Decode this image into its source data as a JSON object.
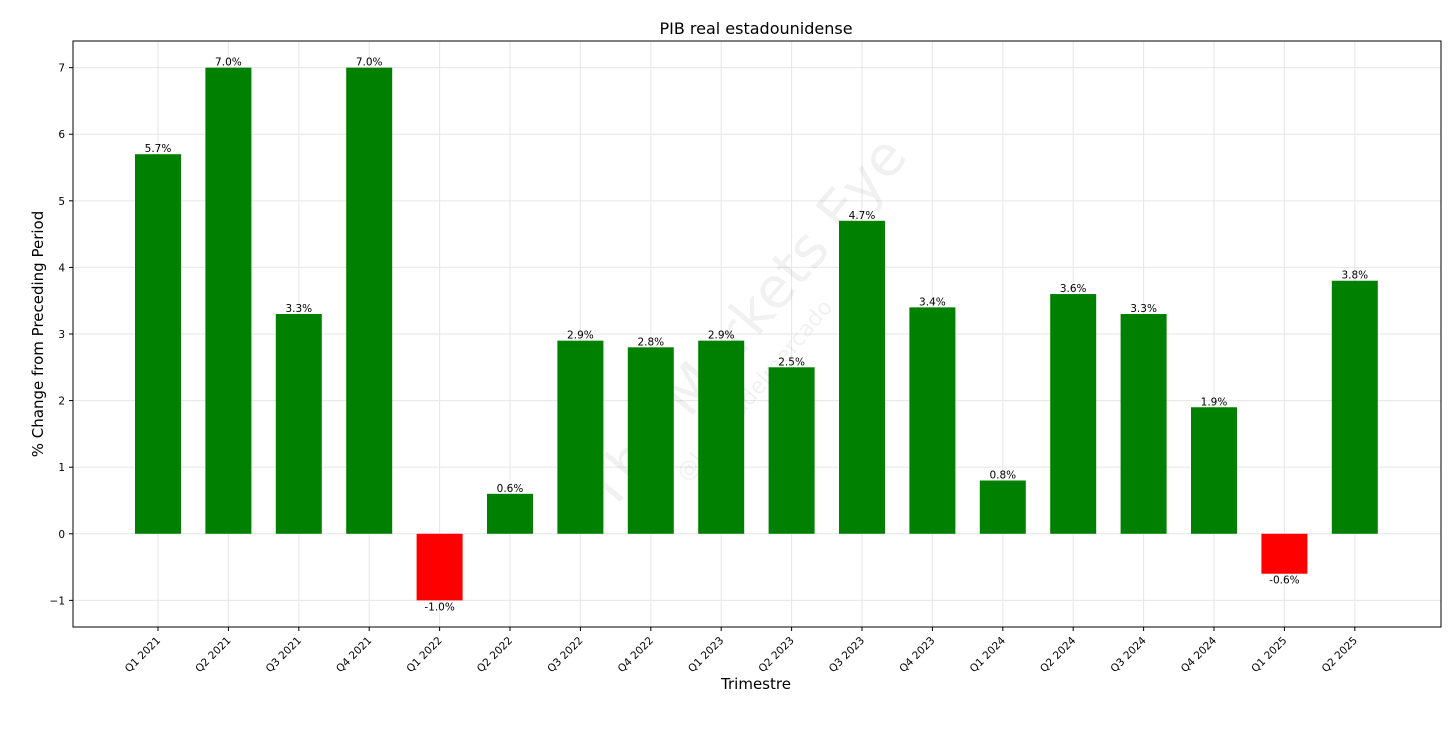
{
  "chart_data": {
    "type": "bar",
    "title": "PIB real estadounidense",
    "xlabel": "Trimestre",
    "ylabel": "% Change from Preceding Period",
    "categories": [
      "Q1 2021",
      "Q2 2021",
      "Q3 2021",
      "Q4 2021",
      "Q1 2022",
      "Q2 2022",
      "Q3 2022",
      "Q4 2022",
      "Q1 2023",
      "Q2 2023",
      "Q3 2023",
      "Q4 2023",
      "Q1 2024",
      "Q2 2024",
      "Q3 2024",
      "Q4 2024",
      "Q1 2025",
      "Q2 2025"
    ],
    "values": [
      5.7,
      7.0,
      3.3,
      7.0,
      -1.0,
      0.6,
      2.9,
      2.8,
      2.9,
      2.5,
      4.7,
      3.4,
      0.8,
      3.6,
      3.3,
      1.9,
      -0.6,
      3.8
    ],
    "data_labels": [
      "5.7%",
      "7.0%",
      "3.3%",
      "7.0%",
      "-1.0%",
      "0.6%",
      "2.9%",
      "2.8%",
      "2.9%",
      "2.5%",
      "4.7%",
      "3.4%",
      "0.8%",
      "3.6%",
      "3.3%",
      "1.9%",
      "-0.6%",
      "3.8%"
    ],
    "ylim": [
      -1.4,
      7.4
    ],
    "yticks": [
      -1,
      0,
      1,
      2,
      3,
      4,
      5,
      6,
      7
    ],
    "ytick_labels": [
      "−1",
      "0",
      "1",
      "2",
      "3",
      "4",
      "5",
      "6",
      "7"
    ],
    "grid": true,
    "colors": {
      "positive": "#008000",
      "negative": "#ff0000"
    },
    "watermark": {
      "text": "The Markets Eye",
      "subtext": "@lacartadelmercado"
    }
  }
}
